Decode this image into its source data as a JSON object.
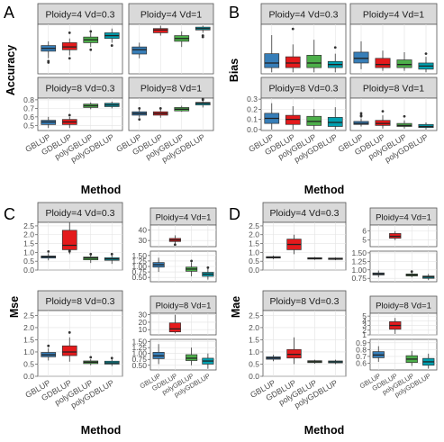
{
  "colors": {
    "GBLUP": "#377EB8",
    "GDBLUP": "#E41A1C",
    "polyGBLUP": "#4DAF4A",
    "polyGDBLUP": "#00A0B0"
  },
  "chart_data": [
    {
      "letter": "A",
      "type": "boxplot",
      "ylabel": "Accuracy",
      "xlabel": "Method",
      "categories": [
        "GBLUP",
        "GDBLUP",
        "polyGBLUP",
        "polyGDBLUP"
      ],
      "facets": [
        {
          "title": "Ploidy=4 Vd=0.3",
          "ylim": [
            0.47,
            0.82
          ],
          "yticks": [],
          "boxes": [
            {
              "min": 0.58,
              "q1": 0.63,
              "median": 0.65,
              "q3": 0.67,
              "max": 0.7,
              "outliers": [
                0.55,
                0.56
              ]
            },
            {
              "min": 0.6,
              "q1": 0.64,
              "median": 0.66,
              "q3": 0.69,
              "max": 0.72,
              "outliers": [
                0.76,
                0.58
              ]
            },
            {
              "min": 0.66,
              "q1": 0.69,
              "median": 0.71,
              "q3": 0.73,
              "max": 0.76,
              "outliers": [
                0.77,
                0.64
              ]
            },
            {
              "min": 0.69,
              "q1": 0.72,
              "median": 0.74,
              "q3": 0.76,
              "max": 0.79,
              "outliers": [
                0.67
              ]
            }
          ]
        },
        {
          "title": "Ploidy=4 Vd=1",
          "ylim": [
            0.47,
            0.82
          ],
          "yticks": [],
          "boxes": [
            {
              "min": 0.58,
              "q1": 0.61,
              "median": 0.64,
              "q3": 0.66,
              "max": 0.69,
              "outliers": []
            },
            {
              "min": 0.74,
              "q1": 0.76,
              "median": 0.78,
              "q3": 0.79,
              "max": 0.81,
              "outliers": []
            },
            {
              "min": 0.66,
              "q1": 0.7,
              "median": 0.72,
              "q3": 0.74,
              "max": 0.77,
              "outliers": []
            },
            {
              "min": 0.76,
              "q1": 0.78,
              "median": 0.79,
              "q3": 0.8,
              "max": 0.81,
              "outliers": [
                0.74,
                0.73
              ]
            }
          ]
        },
        {
          "title": "Ploidy=8 Vd=0.3",
          "ylim": [
            0.44,
            0.82
          ],
          "yticks": [
            0.5,
            0.6,
            0.7,
            0.8
          ],
          "boxes": [
            {
              "min": 0.47,
              "q1": 0.51,
              "median": 0.54,
              "q3": 0.56,
              "max": 0.6,
              "outliers": []
            },
            {
              "min": 0.47,
              "q1": 0.51,
              "median": 0.54,
              "q3": 0.57,
              "max": 0.6,
              "outliers": [
                0.62
              ]
            },
            {
              "min": 0.69,
              "q1": 0.71,
              "median": 0.73,
              "q3": 0.75,
              "max": 0.77,
              "outliers": []
            },
            {
              "min": 0.7,
              "q1": 0.72,
              "median": 0.74,
              "q3": 0.76,
              "max": 0.78,
              "outliers": []
            }
          ]
        },
        {
          "title": "Ploidy=8 Vd=1",
          "ylim": [
            0.44,
            0.82
          ],
          "yticks": [],
          "boxes": [
            {
              "min": 0.59,
              "q1": 0.62,
              "median": 0.64,
              "q3": 0.66,
              "max": 0.69,
              "outliers": [
                0.57,
                0.7
              ]
            },
            {
              "min": 0.59,
              "q1": 0.62,
              "median": 0.64,
              "q3": 0.66,
              "max": 0.69,
              "outliers": [
                0.7
              ]
            },
            {
              "min": 0.66,
              "q1": 0.67,
              "median": 0.69,
              "q3": 0.71,
              "max": 0.73,
              "outliers": []
            },
            {
              "min": 0.71,
              "q1": 0.74,
              "median": 0.76,
              "q3": 0.77,
              "max": 0.79,
              "outliers": [
                0.8,
                0.81
              ]
            }
          ]
        }
      ]
    },
    {
      "letter": "B",
      "type": "boxplot",
      "ylabel": "Bias",
      "xlabel": "Method",
      "categories": [
        "GBLUP",
        "GDBLUP",
        "polyGBLUP",
        "polyGDBLUP"
      ],
      "facets": [
        {
          "title": "Ploidy=4 Vd=0.3",
          "ylim": [
            -0.01,
            0.31
          ],
          "yticks": [],
          "boxes": [
            {
              "min": 0.0,
              "q1": 0.03,
              "median": 0.06,
              "q3": 0.12,
              "max": 0.24,
              "outliers": []
            },
            {
              "min": 0.0,
              "q1": 0.03,
              "median": 0.06,
              "q3": 0.1,
              "max": 0.18,
              "outliers": [
                0.28
              ]
            },
            {
              "min": 0.0,
              "q1": 0.03,
              "median": 0.06,
              "q3": 0.11,
              "max": 0.21,
              "outliers": []
            },
            {
              "min": 0.0,
              "q1": 0.03,
              "median": 0.05,
              "q3": 0.07,
              "max": 0.12,
              "outliers": [
                0.16
              ]
            }
          ]
        },
        {
          "title": "Ploidy=4 Vd=1",
          "ylim": [
            -0.01,
            0.31
          ],
          "yticks": [],
          "boxes": [
            {
              "min": 0.02,
              "q1": 0.06,
              "median": 0.09,
              "q3": 0.13,
              "max": 0.2,
              "outliers": []
            },
            {
              "min": 0.01,
              "q1": 0.03,
              "median": 0.05,
              "q3": 0.09,
              "max": 0.14,
              "outliers": []
            },
            {
              "min": 0.01,
              "q1": 0.03,
              "median": 0.05,
              "q3": 0.08,
              "max": 0.13,
              "outliers": []
            },
            {
              "min": 0.0,
              "q1": 0.02,
              "median": 0.04,
              "q3": 0.06,
              "max": 0.1,
              "outliers": [
                0.12
              ]
            }
          ]
        },
        {
          "title": "Ploidy=8 Vd=0.3",
          "ylim": [
            -0.01,
            0.31
          ],
          "yticks": [
            0.0,
            0.1,
            0.2,
            0.3
          ],
          "boxes": [
            {
              "min": 0.0,
              "q1": 0.06,
              "median": 0.11,
              "q3": 0.16,
              "max": 0.26,
              "outliers": []
            },
            {
              "min": 0.0,
              "q1": 0.05,
              "median": 0.1,
              "q3": 0.14,
              "max": 0.23,
              "outliers": []
            },
            {
              "min": 0.0,
              "q1": 0.04,
              "median": 0.08,
              "q3": 0.13,
              "max": 0.2,
              "outliers": []
            },
            {
              "min": 0.0,
              "q1": 0.03,
              "median": 0.07,
              "q3": 0.12,
              "max": 0.22,
              "outliers": []
            }
          ]
        },
        {
          "title": "Ploidy=8 Vd=1",
          "ylim": [
            -0.01,
            0.31
          ],
          "yticks": [],
          "boxes": [
            {
              "min": 0.03,
              "q1": 0.05,
              "median": 0.06,
              "q3": 0.08,
              "max": 0.11,
              "outliers": [
                0.16,
                0.14,
                0.13
              ]
            },
            {
              "min": 0.01,
              "q1": 0.04,
              "median": 0.06,
              "q3": 0.09,
              "max": 0.14,
              "outliers": [
                0.18
              ]
            },
            {
              "min": 0.01,
              "q1": 0.03,
              "median": 0.04,
              "q3": 0.06,
              "max": 0.09,
              "outliers": [
                0.13
              ]
            },
            {
              "min": 0.0,
              "q1": 0.02,
              "median": 0.03,
              "q3": 0.05,
              "max": 0.07,
              "outliers": []
            }
          ]
        }
      ]
    },
    {
      "letter": "C",
      "type": "boxplot",
      "ylabel": "Mse",
      "xlabel": "Method",
      "categories": [
        "GBLUP",
        "GDBLUP",
        "polyGBLUP",
        "polyGDBLUP"
      ],
      "facets": [
        {
          "title": "Ploidy=4 Vd=0.3",
          "ylim": [
            0.0,
            2.7
          ],
          "yticks": [
            0.0,
            0.5,
            1.0,
            1.5,
            2.0,
            2.5
          ],
          "boxes": [
            {
              "min": 0.55,
              "q1": 0.68,
              "median": 0.75,
              "q3": 0.8,
              "max": 0.95,
              "outliers": [
                1.05
              ]
            },
            {
              "min": 0.9,
              "q1": 1.15,
              "median": 1.4,
              "q3": 2.25,
              "max": 2.7,
              "outliers": [
                1.05,
                1.1
              ]
            },
            {
              "min": 0.4,
              "q1": 0.58,
              "median": 0.68,
              "q3": 0.74,
              "max": 0.85,
              "outliers": [
                0.9
              ]
            },
            {
              "min": 0.35,
              "q1": 0.55,
              "median": 0.63,
              "q3": 0.7,
              "max": 0.82,
              "outliers": [
                0.9
              ]
            }
          ]
        },
        {
          "title": "Ploidy=4 Vd=1",
          "split": true,
          "top_ylim": [
            24,
            45
          ],
          "top_yticks": [
            30,
            40
          ],
          "bottom_ylim": [
            0.3,
            1.7
          ],
          "bottom_yticks": [
            0.5,
            0.75,
            1.0,
            1.25,
            1.5
          ],
          "boxes": [
            {
              "min": 0.75,
              "q1": 0.97,
              "median": 1.08,
              "q3": 1.18,
              "max": 1.4,
              "outliers": []
            },
            {
              "min": 27,
              "q1": 29,
              "median": 30.5,
              "q3": 32,
              "max": 35,
              "outliers": [
                26
              ]
            },
            {
              "min": 0.55,
              "q1": 0.78,
              "median": 0.88,
              "q3": 0.97,
              "max": 1.18,
              "outliers": [
                1.25
              ]
            },
            {
              "min": 0.4,
              "q1": 0.55,
              "median": 0.65,
              "q3": 0.73,
              "max": 0.9,
              "outliers": [
                0.95
              ]
            }
          ]
        },
        {
          "title": "Ploidy=8 Vd=0.3",
          "ylim": [
            0.0,
            2.7
          ],
          "yticks": [
            0.0,
            0.5,
            1.0,
            1.5,
            2.0,
            2.5
          ],
          "boxes": [
            {
              "min": 0.65,
              "q1": 0.8,
              "median": 0.88,
              "q3": 0.98,
              "max": 1.15,
              "outliers": [
                1.25
              ]
            },
            {
              "min": 0.6,
              "q1": 0.85,
              "median": 1.0,
              "q3": 1.25,
              "max": 1.6,
              "outliers": [
                1.8
              ]
            },
            {
              "min": 0.45,
              "q1": 0.52,
              "median": 0.58,
              "q3": 0.63,
              "max": 0.7,
              "outliers": [
                0.78
              ]
            },
            {
              "min": 0.42,
              "q1": 0.5,
              "median": 0.55,
              "q3": 0.62,
              "max": 0.7,
              "outliers": [
                0.75
              ]
            }
          ]
        },
        {
          "title": "Ploidy=8 Vd=1",
          "split": true,
          "top_ylim": [
            3,
            32
          ],
          "top_yticks": [
            10,
            20,
            30
          ],
          "bottom_ylim": [
            0.3,
            1.6
          ],
          "bottom_yticks": [
            0.5,
            0.75,
            1.0,
            1.25,
            1.5
          ],
          "boxes": [
            {
              "min": 0.55,
              "q1": 0.78,
              "median": 0.9,
              "q3": 1.05,
              "max": 1.4,
              "outliers": []
            },
            {
              "min": 5,
              "q1": 7,
              "median": 11,
              "q3": 19,
              "max": 30,
              "outliers": []
            },
            {
              "min": 0.5,
              "q1": 0.7,
              "median": 0.8,
              "q3": 0.95,
              "max": 1.25,
              "outliers": []
            },
            {
              "min": 0.35,
              "q1": 0.55,
              "median": 0.68,
              "q3": 0.8,
              "max": 1.0,
              "outliers": []
            }
          ]
        }
      ]
    },
    {
      "letter": "D",
      "type": "boxplot",
      "ylabel": "Mae",
      "xlabel": "Method",
      "categories": [
        "GBLUP",
        "GDBLUP",
        "polyGBLUP",
        "polyGDBLUP"
      ],
      "facets": [
        {
          "title": "Ploidy=4 Vd=0.3",
          "ylim": [
            0.0,
            2.7
          ],
          "yticks": [
            0.0,
            0.5,
            1.0,
            1.5,
            2.0,
            2.5
          ],
          "boxes": [
            {
              "min": 0.62,
              "q1": 0.68,
              "median": 0.72,
              "q3": 0.76,
              "max": 0.82,
              "outliers": []
            },
            {
              "min": 0.9,
              "q1": 1.15,
              "median": 1.45,
              "q3": 1.75,
              "max": 2.0,
              "outliers": []
            },
            {
              "min": 0.58,
              "q1": 0.62,
              "median": 0.66,
              "q3": 0.7,
              "max": 0.74,
              "outliers": []
            },
            {
              "min": 0.56,
              "q1": 0.6,
              "median": 0.64,
              "q3": 0.68,
              "max": 0.72,
              "outliers": []
            }
          ]
        },
        {
          "title": "Ploidy=4 Vd=1",
          "split": true,
          "top_ylim": [
            4.3,
            6.6
          ],
          "top_yticks": [
            5,
            6
          ],
          "bottom_ylim": [
            0.65,
            1.55
          ],
          "bottom_yticks": [
            0.75,
            1.0,
            1.25,
            1.5
          ],
          "boxes": [
            {
              "min": 0.78,
              "q1": 0.85,
              "median": 0.88,
              "q3": 0.91,
              "max": 0.98,
              "outliers": []
            },
            {
              "min": 5.0,
              "q1": 5.2,
              "median": 5.4,
              "q3": 5.7,
              "max": 5.95,
              "outliers": []
            },
            {
              "min": 0.78,
              "q1": 0.82,
              "median": 0.85,
              "q3": 0.88,
              "max": 0.92,
              "outliers": [
                0.95
              ]
            },
            {
              "min": 0.7,
              "q1": 0.75,
              "median": 0.79,
              "q3": 0.82,
              "max": 0.88,
              "outliers": []
            }
          ]
        },
        {
          "title": "Ploidy=8 Vd=0.3",
          "ylim": [
            0.0,
            2.7
          ],
          "yticks": [
            0.0,
            0.5,
            1.0,
            1.5,
            2.0,
            2.5
          ],
          "boxes": [
            {
              "min": 0.62,
              "q1": 0.7,
              "median": 0.75,
              "q3": 0.8,
              "max": 0.88,
              "outliers": []
            },
            {
              "min": 0.5,
              "q1": 0.75,
              "median": 0.9,
              "q3": 1.1,
              "max": 1.6,
              "outliers": []
            },
            {
              "min": 0.52,
              "q1": 0.56,
              "median": 0.6,
              "q3": 0.64,
              "max": 0.68,
              "outliers": []
            },
            {
              "min": 0.5,
              "q1": 0.55,
              "median": 0.59,
              "q3": 0.63,
              "max": 0.68,
              "outliers": []
            }
          ]
        },
        {
          "title": "Ploidy=8 Vd=1",
          "split": true,
          "top_ylim": [
            1.0,
            5.6
          ],
          "top_yticks": [
            1,
            2,
            3,
            4,
            5
          ],
          "bottom_ylim": [
            0.5,
            0.95
          ],
          "bottom_yticks": [
            0.6,
            0.7,
            0.8,
            0.9
          ],
          "boxes": [
            {
              "min": 0.62,
              "q1": 0.68,
              "median": 0.72,
              "q3": 0.77,
              "max": 0.85,
              "outliers": []
            },
            {
              "min": 1.2,
              "q1": 2.2,
              "median": 3.0,
              "q3": 3.8,
              "max": 4.6,
              "outliers": []
            },
            {
              "min": 0.56,
              "q1": 0.61,
              "median": 0.66,
              "q3": 0.71,
              "max": 0.78,
              "outliers": []
            },
            {
              "min": 0.52,
              "q1": 0.57,
              "median": 0.62,
              "q3": 0.67,
              "max": 0.74,
              "outliers": []
            }
          ]
        }
      ]
    }
  ]
}
